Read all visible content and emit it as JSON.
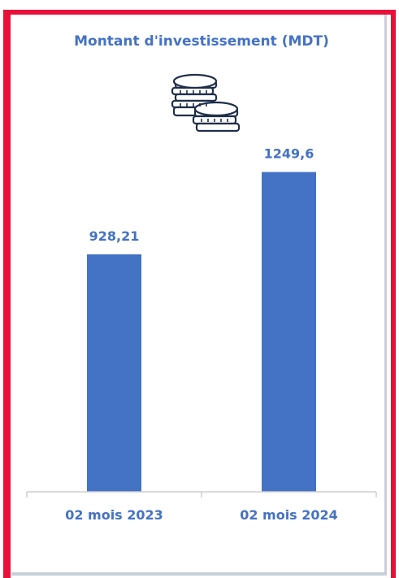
{
  "chart_data": {
    "type": "bar",
    "title": "Montant d'investissement (MDT)",
    "categories": [
      "02 mois 2023",
      "02 mois 2024"
    ],
    "values": [
      928.21,
      1249.6
    ],
    "value_labels": [
      "928,21",
      "1249,6"
    ],
    "xlabel": "",
    "ylabel": "",
    "ylim": [
      0,
      1350
    ],
    "grid": false,
    "legend": "none",
    "bar_color": "#4472c4",
    "text_color": "#4472c4",
    "icon": "coins-stack-icon"
  },
  "frame": {
    "border_color": "#e8103a"
  }
}
